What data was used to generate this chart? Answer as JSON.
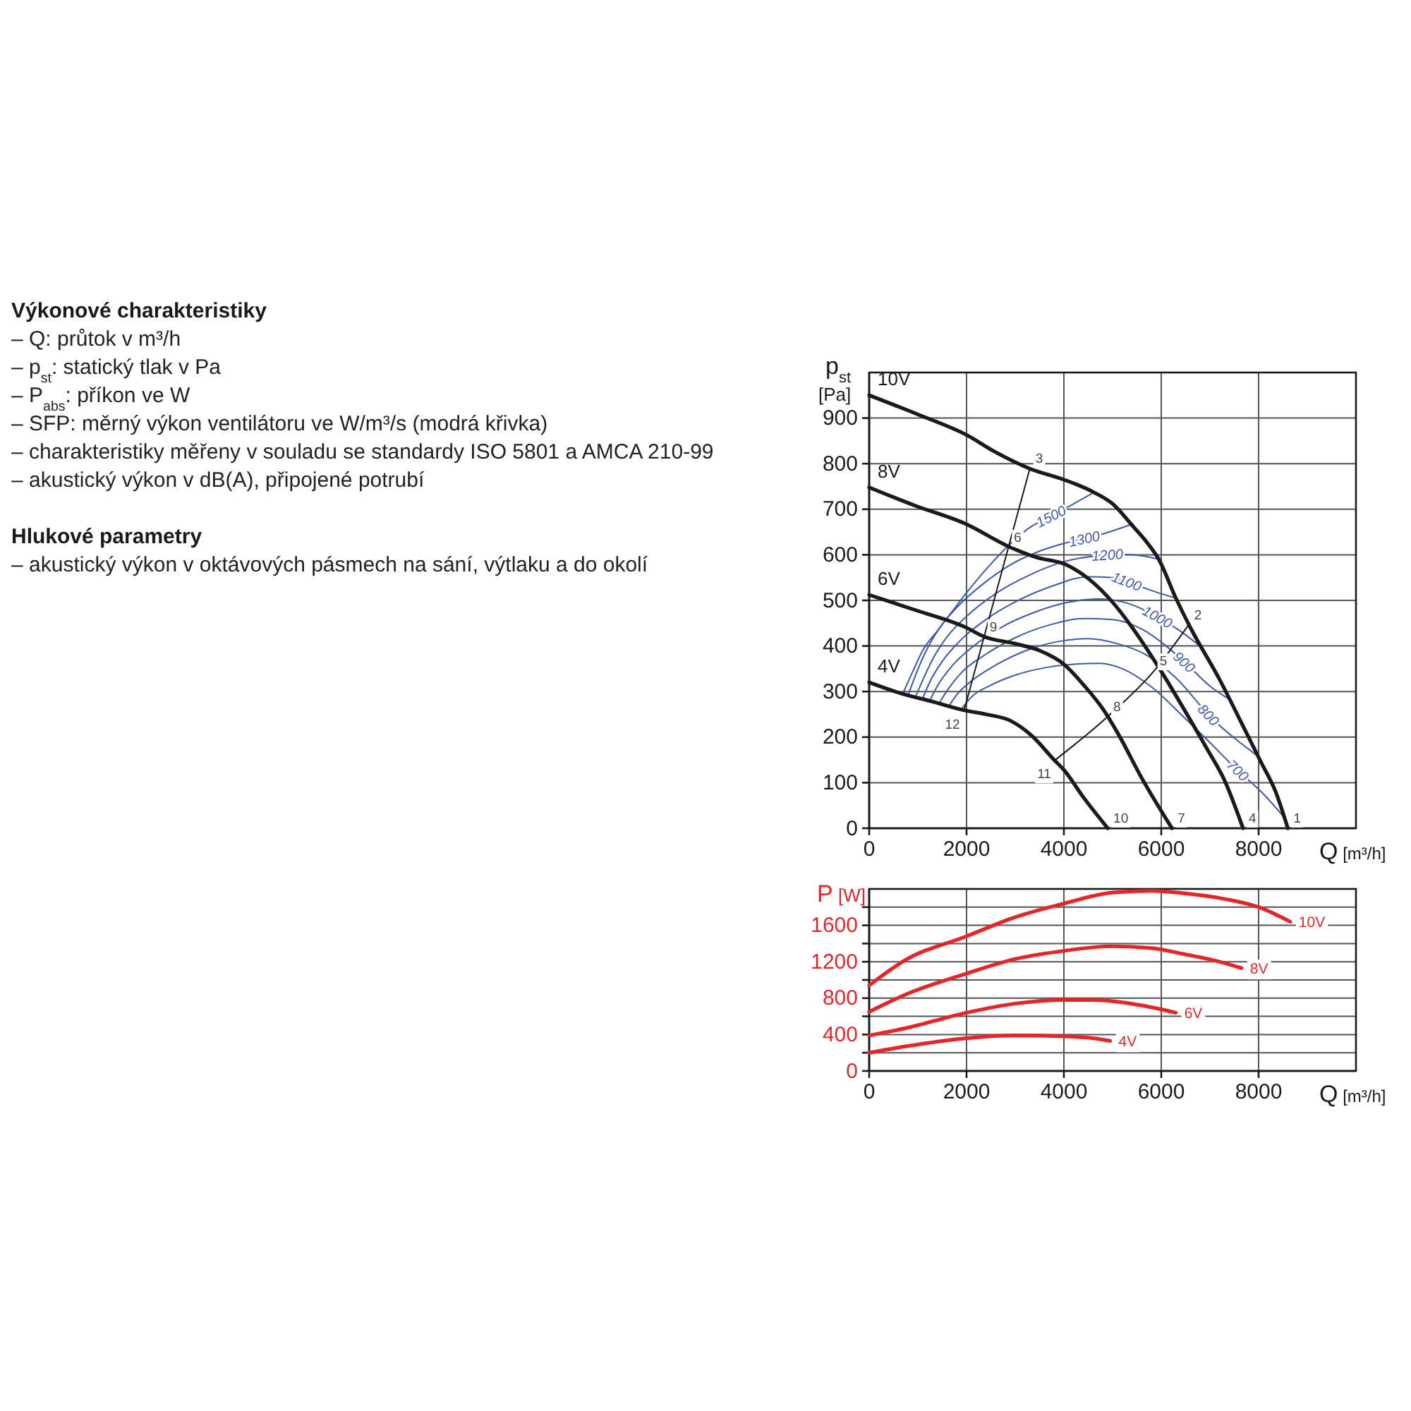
{
  "chart_data": [
    {
      "type": "other",
      "title": "Výkonové charakteristiky",
      "annotations": [
        "– Q: průtok v m³/h",
        "– p$_{st}$: statický tlak v Pa",
        "– P$_{abs}$: příkon ve W",
        "– SFP: měrný výkon ventilátoru ve W/m³/s (modrá křivka)",
        "– charakteristiky měřeny v souladu se standardy ISO 5801 a AMCA 210-99",
        "– akustický výkon v dB(A), připojené potrubí"
      ]
    },
    {
      "type": "other",
      "title": "Hlukové parametry",
      "annotations": [
        "– akustický výkon v oktávových pásmech na sání, výtlaku a do okolí"
      ]
    },
    {
      "type": "line",
      "xlabel": "Q [m³/h]",
      "ylabel": "p$_{st}$ [Pa]",
      "xlim": [
        0,
        10000
      ],
      "ylim": [
        0,
        1000
      ],
      "xticks": [
        0,
        2000,
        4000,
        6000,
        8000
      ],
      "yticks": [
        0,
        100,
        200,
        300,
        400,
        500,
        600,
        700,
        800,
        900
      ],
      "grid": true,
      "series": [
        {
          "name": "10V",
          "color": "#1a1a1a",
          "x": [
            0,
            1000,
            2000,
            2600,
            3300,
            4000,
            4600,
            5000,
            5400,
            5700,
            5950,
            6300,
            6600,
            7200,
            7700,
            8050,
            8350,
            8600
          ],
          "values": [
            950,
            908,
            863,
            825,
            789,
            765,
            738,
            712,
            665,
            628,
            590,
            505,
            440,
            326,
            220,
            145,
            80,
            0
          ]
        },
        {
          "name": "8V",
          "color": "#1a1a1a",
          "x": [
            0,
            940,
            2000,
            2870,
            3450,
            4030,
            4500,
            5000,
            5380,
            5960,
            6540,
            6930,
            7300,
            7680
          ],
          "values": [
            748,
            708,
            667,
            618,
            594,
            579,
            548,
            496,
            444,
            351,
            248,
            176,
            105,
            0
          ]
        },
        {
          "name": "6V",
          "color": "#1a1a1a",
          "x": [
            0,
            1000,
            2000,
            2350,
            3000,
            3500,
            4000,
            4400,
            4800,
            5100,
            5600,
            6220
          ],
          "values": [
            512,
            477,
            440,
            421,
            405,
            390,
            360,
            315,
            262,
            210,
            110,
            0
          ]
        },
        {
          "name": "4V",
          "color": "#1a1a1a",
          "x": [
            0,
            650,
            1300,
            1950,
            2400,
            2900,
            3350,
            3800,
            4000,
            4400,
            4900
          ],
          "values": [
            320,
            296,
            278,
            259,
            250,
            236,
            202,
            150,
            128,
            68,
            0
          ]
        },
        {
          "name": "1500",
          "color": "#3d5aa9",
          "x": [
            690,
            900,
            1100,
            1400,
            1700,
            2000,
            2400,
            2860,
            3300,
            3800,
            4200,
            4600
          ],
          "values": [
            295,
            345,
            390,
            433,
            475,
            517,
            568,
            620,
            660,
            688,
            712,
            736
          ]
        },
        {
          "name": "1300",
          "color": "#3d5aa9",
          "x": [
            800,
            950,
            1150,
            1450,
            1850,
            2350,
            2900,
            3500,
            4000,
            4650,
            5420
          ],
          "values": [
            292,
            335,
            385,
            440,
            490,
            537,
            578,
            608,
            625,
            641,
            668
          ]
        },
        {
          "name": "1200",
          "color": "#3d5aa9",
          "x": [
            950,
            1100,
            1300,
            1600,
            2000,
            2600,
            3300,
            4000,
            4700,
            5200,
            5600,
            5950
          ],
          "values": [
            288,
            325,
            370,
            420,
            465,
            515,
            556,
            585,
            598,
            601,
            598,
            590
          ]
        },
        {
          "name": "1100",
          "color": "#3d5aa9",
          "x": [
            1100,
            1250,
            1500,
            1900,
            2400,
            3100,
            3800,
            4500,
            5000,
            5500,
            5900,
            6300
          ],
          "values": [
            285,
            322,
            366,
            415,
            458,
            502,
            533,
            552,
            550,
            533,
            518,
            505
          ]
        },
        {
          "name": "1000",
          "color": "#3d5aa9",
          "x": [
            1250,
            1400,
            1700,
            2100,
            2700,
            3400,
            4100,
            4700,
            5300,
            5900,
            6400,
            6850
          ],
          "values": [
            281,
            312,
            356,
            396,
            440,
            474,
            496,
            503,
            494,
            465,
            432,
            395
          ]
        },
        {
          "name": "900",
          "color": "#3d5aa9",
          "x": [
            1450,
            1600,
            1900,
            2400,
            3000,
            3700,
            4400,
            5000,
            5600,
            6100,
            6600,
            7000,
            7400
          ],
          "values": [
            276,
            302,
            342,
            382,
            418,
            446,
            460,
            458,
            437,
            400,
            352,
            312,
            283
          ]
        },
        {
          "name": "800",
          "color": "#3d5aa9",
          "x": [
            1650,
            1800,
            2100,
            2600,
            3200,
            3900,
            4500,
            5100,
            5700,
            6300,
            7050,
            7500,
            7960
          ],
          "values": [
            270,
            293,
            323,
            358,
            389,
            410,
            416,
            405,
            380,
            330,
            240,
            198,
            160
          ]
        },
        {
          "name": "700",
          "color": "#3d5aa9",
          "x": [
            1900,
            2100,
            2500,
            3000,
            3600,
            4200,
            4750,
            5200,
            5800,
            6500,
            7000,
            7540,
            8100,
            8540
          ],
          "values": [
            262,
            288,
            314,
            336,
            352,
            360,
            362,
            350,
            310,
            240,
            188,
            130,
            75,
            22
          ]
        },
        {
          "color": "#1a1a1a",
          "x": [
            1950,
            3300
          ],
          "values": [
            259,
            789
          ]
        },
        {
          "color": "#1a1a1a",
          "x": [
            3825,
            4900,
            5850,
            6560
          ],
          "values": [
            150,
            245,
            345,
            446
          ]
        }
      ],
      "annotations": [
        {
          "text": "1",
          "x": 8600,
          "y": 0
        },
        {
          "text": "2",
          "x": 6560,
          "y": 446
        },
        {
          "text": "3",
          "x": 3300,
          "y": 789
        },
        {
          "text": "4",
          "x": 7680,
          "y": 0
        },
        {
          "text": "5",
          "x": 5850,
          "y": 345
        },
        {
          "text": "6",
          "x": 2860,
          "y": 616
        },
        {
          "text": "7",
          "x": 6220,
          "y": 0
        },
        {
          "text": "8",
          "x": 4900,
          "y": 245
        },
        {
          "text": "9",
          "x": 2360,
          "y": 420
        },
        {
          "text": "10",
          "x": 4900,
          "y": 0
        },
        {
          "text": "11",
          "x": 3825,
          "y": 150
        },
        {
          "text": "12",
          "x": 1950,
          "y": 259
        }
      ]
    },
    {
      "type": "line",
      "xlabel": "Q [m³/h]",
      "ylabel": "P [W]",
      "xlim": [
        0,
        10000
      ],
      "ylim": [
        0,
        2000
      ],
      "xticks": [
        0,
        2000,
        4000,
        6000,
        8000
      ],
      "yticks": [
        0,
        {
          "value": 200,
          "label": null
        },
        400,
        {
          "value": 600,
          "label": null
        },
        800,
        {
          "value": 1000,
          "label": null
        },
        1200,
        {
          "value": 1400,
          "label": null
        },
        1600,
        {
          "value": 1800,
          "label": null
        }
      ],
      "grid": true,
      "series": [
        {
          "name": "10V",
          "color": "#e42629",
          "x": [
            0,
            750,
            2000,
            3000,
            4000,
            5000,
            5800,
            6500,
            7300,
            8000,
            8650
          ],
          "values": [
            940,
            1220,
            1480,
            1690,
            1840,
            1960,
            1980,
            1950,
            1890,
            1800,
            1640
          ]
        },
        {
          "name": "8V",
          "color": "#e42629",
          "x": [
            0,
            750,
            2000,
            3000,
            4000,
            5000,
            5800,
            6500,
            7200,
            7650
          ],
          "values": [
            650,
            840,
            1070,
            1230,
            1320,
            1370,
            1350,
            1280,
            1200,
            1130
          ]
        },
        {
          "name": "6V",
          "color": "#e42629",
          "x": [
            0,
            750,
            2000,
            3000,
            4000,
            4600,
            5600,
            6300
          ],
          "values": [
            390,
            470,
            640,
            740,
            780,
            780,
            720,
            640
          ]
        },
        {
          "name": "4V",
          "color": "#e42629",
          "x": [
            0,
            750,
            2000,
            3000,
            4000,
            4600,
            4950
          ],
          "values": [
            200,
            270,
            360,
            390,
            380,
            360,
            330
          ]
        }
      ]
    }
  ]
}
